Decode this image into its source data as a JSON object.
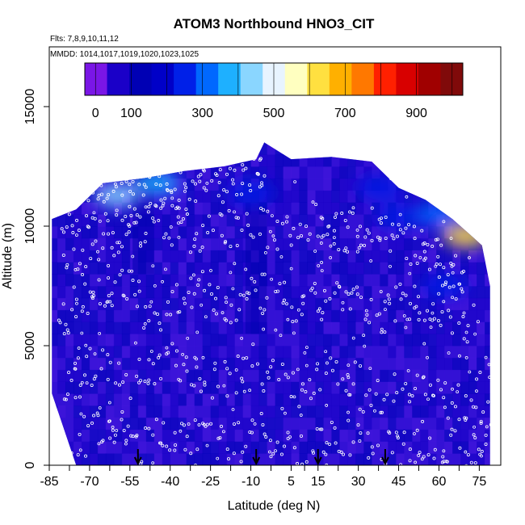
{
  "chart_data": {
    "type": "heatmap",
    "title": "ATOM3 Northbound HNO3_CIT",
    "subtitle_flights": "Flts: 7,8,9,10,11,12",
    "subtitle_dates": "MMDD: 1014,1017,1019,1020,1023,1025",
    "xlabel": "Latitude (deg N)",
    "ylabel": "Altitude (m)",
    "xlim": [
      -85,
      83
    ],
    "ylim": [
      0,
      17500
    ],
    "x_ticks": [
      -85,
      -70,
      -55,
      -40,
      -25,
      -10,
      5,
      15,
      30,
      45,
      60,
      75
    ],
    "y_ticks": [
      0,
      5000,
      10000,
      15000
    ],
    "colorbar": {
      "range": [
        -30,
        1030
      ],
      "ticks": [
        0,
        100,
        300,
        500,
        700,
        900
      ],
      "colors": [
        "#7a16e6",
        "#1a00c8",
        "#0000b4",
        "#0000c8",
        "#0020e8",
        "#0068ff",
        "#1eb0ff",
        "#8ad6ff",
        "#e8f4ff",
        "#ffffc0",
        "#ffe040",
        "#ffb000",
        "#ff7800",
        "#ff2000",
        "#d80000",
        "#a00000",
        "#800a0a"
      ]
    },
    "coverage_top": [
      [
        -84,
        10300
      ],
      [
        -75,
        10700
      ],
      [
        -65,
        11800
      ],
      [
        -50,
        12000
      ],
      [
        -35,
        12300
      ],
      [
        -20,
        12500
      ],
      [
        -8,
        12800
      ],
      [
        -5,
        13500
      ],
      [
        5,
        12800
      ],
      [
        20,
        12900
      ],
      [
        35,
        12700
      ],
      [
        45,
        11600
      ],
      [
        55,
        11100
      ],
      [
        65,
        10300
      ],
      [
        72,
        9600
      ],
      [
        76,
        9200
      ],
      [
        79,
        7500
      ]
    ],
    "coverage_bottom": [
      [
        -84,
        3000
      ],
      [
        -78,
        1000
      ],
      [
        -75,
        0
      ],
      [
        79,
        0
      ]
    ],
    "hotspots": [
      {
        "lat": -45,
        "alt": 11800,
        "value": 380
      },
      {
        "lat": -60,
        "alt": 11300,
        "value": 450
      },
      {
        "lat": -10,
        "alt": 11400,
        "value": 230
      },
      {
        "lat": 38,
        "alt": 11600,
        "value": 260
      },
      {
        "lat": 45,
        "alt": 10400,
        "value": 240
      },
      {
        "lat": 60,
        "alt": 10500,
        "value": 300
      },
      {
        "lat": 70,
        "alt": 9600,
        "value": 620
      },
      {
        "lat": 62,
        "alt": 7500,
        "value": 220
      }
    ],
    "flight_tracks": [
      [
        [
          -80,
          10200
        ],
        [
          -70,
          10500
        ],
        [
          -60,
          11000
        ],
        [
          -50,
          11300
        ],
        [
          -40,
          11500
        ],
        [
          -30,
          11700
        ],
        [
          -20,
          11600
        ],
        [
          -10,
          12300
        ],
        [
          -5,
          12600
        ]
      ],
      [
        [
          -80,
          8000
        ],
        [
          -65,
          9000
        ],
        [
          -55,
          9800
        ],
        [
          -45,
          10400
        ],
        [
          -30,
          9600
        ],
        [
          -15,
          10000
        ],
        [
          0,
          9800
        ],
        [
          15,
          10400
        ],
        [
          25,
          9600
        ],
        [
          35,
          10100
        ],
        [
          45,
          9400
        ],
        [
          55,
          9000
        ],
        [
          62,
          8200
        ],
        [
          70,
          7800
        ]
      ],
      [
        [
          -82,
          6000
        ],
        [
          -70,
          7000
        ],
        [
          -58,
          7600
        ],
        [
          -45,
          6200
        ],
        [
          -30,
          7400
        ],
        [
          -18,
          6500
        ],
        [
          -5,
          7200
        ],
        [
          10,
          6400
        ],
        [
          22,
          7300
        ],
        [
          35,
          6100
        ],
        [
          48,
          7000
        ],
        [
          60,
          6500
        ],
        [
          75,
          5800
        ]
      ],
      [
        [
          -80,
          3000
        ],
        [
          -68,
          4200
        ],
        [
          -52,
          3500
        ],
        [
          -40,
          4600
        ],
        [
          -25,
          3300
        ],
        [
          -10,
          4400
        ],
        [
          5,
          3000
        ],
        [
          20,
          4300
        ],
        [
          35,
          2800
        ],
        [
          50,
          3600
        ],
        [
          65,
          2500
        ],
        [
          78,
          3200
        ]
      ],
      [
        [
          -78,
          800
        ],
        [
          -62,
          1600
        ],
        [
          -50,
          900
        ],
        [
          -35,
          1500
        ],
        [
          -20,
          700
        ],
        [
          -5,
          1400
        ],
        [
          10,
          600
        ],
        [
          25,
          1300
        ],
        [
          40,
          500
        ],
        [
          55,
          1200
        ],
        [
          70,
          700
        ],
        [
          79,
          1100
        ]
      ]
    ],
    "arrows_lat": [
      -52,
      -8,
      15,
      40
    ]
  }
}
